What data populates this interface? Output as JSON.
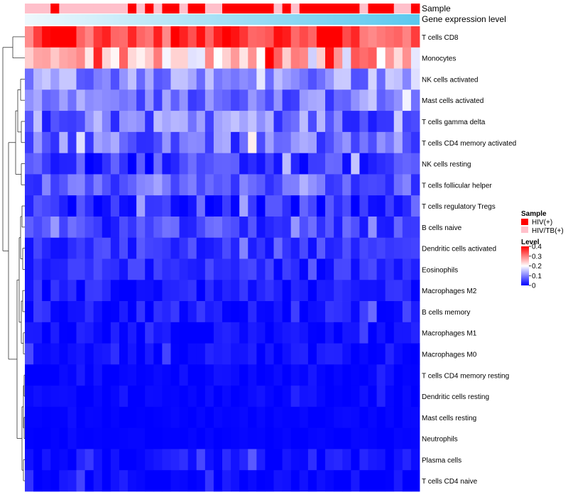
{
  "chart_data": {
    "type": "heatmap",
    "value_legend": {
      "title": "Level",
      "ticks": [
        0,
        0.1,
        0.2,
        0.3,
        0.4
      ],
      "tick_labels": [
        "0",
        "0.1",
        "0.2",
        "0.3",
        "0.4"
      ],
      "colors": {
        "low": "#0000ff",
        "mid": "#ffffff",
        "high": "#ff0000"
      },
      "range": [
        0,
        0.4
      ]
    },
    "annotations": {
      "sample_track": {
        "label": "Sample",
        "legend_title": "Sample",
        "categories": [
          {
            "name": "HIV(+)",
            "color": "#ff0000"
          },
          {
            "name": "HIV/TB(+)",
            "color": "#ffc0cb"
          }
        ],
        "values": [
          "HIV/TB(+)",
          "HIV/TB(+)",
          "HIV/TB(+)",
          "HIV(+)",
          "HIV/TB(+)",
          "HIV/TB(+)",
          "HIV/TB(+)",
          "HIV/TB(+)",
          "HIV/TB(+)",
          "HIV/TB(+)",
          "HIV/TB(+)",
          "HIV/TB(+)",
          "HIV(+)",
          "HIV/TB(+)",
          "HIV(+)",
          "HIV/TB(+)",
          "HIV(+)",
          "HIV(+)",
          "HIV/TB(+)",
          "HIV(+)",
          "HIV(+)",
          "HIV/TB(+)",
          "HIV/TB(+)",
          "HIV(+)",
          "HIV(+)",
          "HIV(+)",
          "HIV(+)",
          "HIV(+)",
          "HIV(+)",
          "HIV/TB(+)",
          "HIV(+)",
          "HIV/TB(+)",
          "HIV(+)",
          "HIV(+)",
          "HIV(+)",
          "HIV(+)",
          "HIV(+)",
          "HIV(+)",
          "HIV(+)",
          "HIV/TB(+)",
          "HIV(+)",
          "HIV(+)",
          "HIV(+)",
          "HIV/TB(+)",
          "HIV/TB(+)",
          "HIV(+)"
        ]
      },
      "expression_track": {
        "label": "Gene expression level",
        "gradient": [
          "#eef8fd",
          "#5bc8ee"
        ]
      }
    },
    "rows": [
      "T cells CD8",
      "Monocytes",
      "NK cells activated",
      "Mast cells activated",
      "T cells gamma delta",
      "T cells CD4 memory activated",
      "NK cells resting",
      "T cells follicular helper",
      "T cells regulatory  Tregs",
      "B cells naive",
      "Dendritic cells activated",
      "Eosinophils",
      "Macrophages M2",
      "B cells memory",
      "Macrophages M1",
      "Macrophages M0",
      "T cells CD4 memory resting",
      "Dendritic cells resting",
      "Mast cells resting",
      "Neutrophils",
      "Plasma cells",
      "T cells CD4 naive"
    ],
    "n_columns": 46,
    "row_profiles": [
      {
        "mean": 0.36,
        "spread": 0.07
      },
      {
        "mean": 0.25,
        "spread": 0.09
      },
      {
        "mean": 0.11,
        "spread": 0.05
      },
      {
        "mean": 0.09,
        "spread": 0.05
      },
      {
        "mean": 0.09,
        "spread": 0.07
      },
      {
        "mean": 0.08,
        "spread": 0.06
      },
      {
        "mean": 0.04,
        "spread": 0.05
      },
      {
        "mean": 0.07,
        "spread": 0.04
      },
      {
        "mean": 0.03,
        "spread": 0.04
      },
      {
        "mean": 0.05,
        "spread": 0.04
      },
      {
        "mean": 0.04,
        "spread": 0.03
      },
      {
        "mean": 0.03,
        "spread": 0.03
      },
      {
        "mean": 0.02,
        "spread": 0.03
      },
      {
        "mean": 0.02,
        "spread": 0.03
      },
      {
        "mean": 0.01,
        "spread": 0.02
      },
      {
        "mean": 0.01,
        "spread": 0.02
      },
      {
        "mean": 0.005,
        "spread": 0.01
      },
      {
        "mean": 0.005,
        "spread": 0.01
      },
      {
        "mean": 0.003,
        "spread": 0.005
      },
      {
        "mean": 0.002,
        "spread": 0.004
      },
      {
        "mean": 0.01,
        "spread": 0.03
      },
      {
        "mean": 0.005,
        "spread": 0.02
      }
    ]
  }
}
